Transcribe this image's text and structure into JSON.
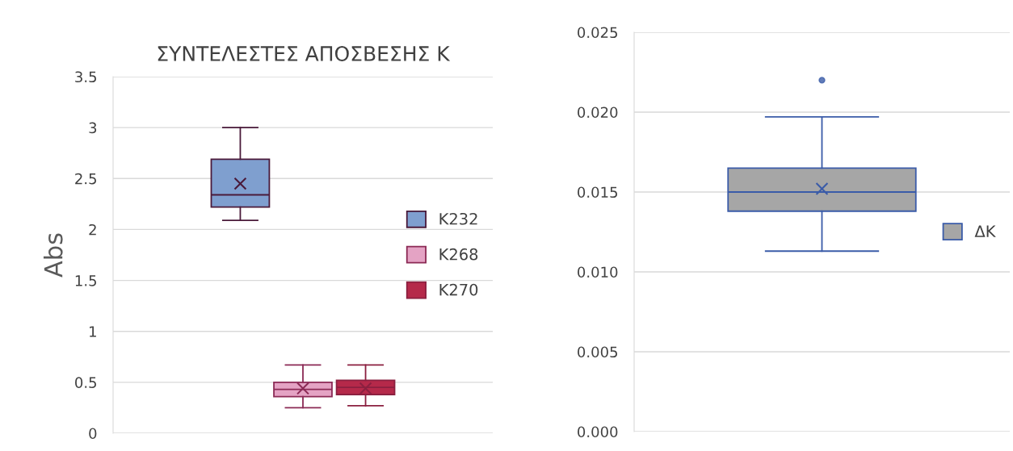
{
  "chart_data": [
    {
      "type": "box",
      "title": "ΣΥΝΤΕΛΕΣΤΕΣ ΑΠΟΣΒΕΣΗΣ K",
      "ylabel": "Abs",
      "categories": [
        null
      ],
      "ylim": [
        0,
        3.5
      ],
      "yticks": [
        0,
        0.5,
        1,
        1.5,
        2,
        2.5,
        3,
        3.5
      ],
      "grid": "y",
      "legend": "right",
      "tick_labels": "y",
      "series": [
        {
          "name": "K232",
          "color": "#7f9fcf",
          "boxes": [
            {
              "low": 2.09,
              "q1": 2.22,
              "median": 2.34,
              "q3": 2.69,
              "high": 3.0,
              "mean": 2.45
            }
          ]
        },
        {
          "name": "K268",
          "color": "#e4a3c4",
          "boxes": [
            {
              "low": 0.25,
              "q1": 0.36,
              "median": 0.43,
              "q3": 0.5,
              "high": 0.67,
              "mean": 0.44
            }
          ]
        },
        {
          "name": "K270",
          "color": "#b5294a",
          "boxes": [
            {
              "low": 0.27,
              "q1": 0.38,
              "median": 0.45,
              "q3": 0.52,
              "high": 0.67,
              "mean": 0.44
            }
          ]
        }
      ]
    },
    {
      "type": "box",
      "categories": [
        null
      ],
      "ylim": [
        0,
        0.025
      ],
      "yticks": [
        {
          "value": 0,
          "label": "0.000"
        },
        {
          "value": 0.005,
          "label": "0.005"
        },
        {
          "value": 0.01,
          "label": "0.010"
        },
        {
          "value": 0.015,
          "label": "0.015"
        },
        {
          "value": 0.02,
          "label": "0.020"
        },
        {
          "value": 0.025,
          "label": "0.025"
        }
      ],
      "grid": "y",
      "legend": "right",
      "tick_labels": "y",
      "series": [
        {
          "name": "ΔK",
          "color": "#a6a6a6",
          "boxes": [
            {
              "low": 0.0113,
              "q1": 0.0138,
              "median": 0.015,
              "q3": 0.0165,
              "high": 0.0197,
              "mean": 0.0152,
              "outliers": [
                0.022
              ]
            }
          ]
        }
      ]
    }
  ]
}
